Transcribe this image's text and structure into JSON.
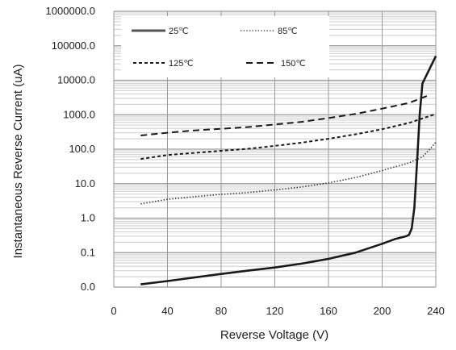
{
  "chart_data": {
    "type": "line",
    "title": "",
    "xlabel": "Reverse Voltage (V)",
    "ylabel": "Instantaneous Reverse Current (uA)",
    "xlim": [
      0,
      240
    ],
    "ylim": [
      0.01,
      1000000
    ],
    "y_scale": "log",
    "grid": true,
    "legend_position": "top-left",
    "x_ticks": [
      0,
      40,
      80,
      120,
      160,
      200,
      240
    ],
    "x_tick_labels": [
      "0",
      "40",
      "80",
      "120",
      "160",
      "200",
      "240"
    ],
    "y_ticks": [
      0.01,
      0.1,
      1,
      10,
      100,
      1000,
      10000,
      100000,
      1000000
    ],
    "y_tick_labels": [
      "0.0",
      "0.1",
      "1.0",
      "10.0",
      "100.0",
      "1000.0",
      "10000.0",
      "100000.0",
      "1000000.0"
    ],
    "series": [
      {
        "name": "25℃",
        "style": "solid-thick",
        "color": "#1a1a1a",
        "x": [
          20,
          40,
          60,
          80,
          100,
          120,
          140,
          160,
          180,
          200,
          210,
          218,
          220,
          222,
          224,
          226,
          228,
          230,
          235,
          240
        ],
        "y": [
          0.012,
          0.015,
          0.019,
          0.024,
          0.03,
          0.037,
          0.048,
          0.066,
          0.1,
          0.18,
          0.25,
          0.3,
          0.33,
          0.5,
          2,
          40,
          1000,
          8000,
          20000,
          50000
        ]
      },
      {
        "name": "85℃",
        "style": "dotted",
        "color": "#333333",
        "x": [
          20,
          40,
          60,
          80,
          100,
          120,
          140,
          160,
          180,
          200,
          210,
          220,
          230,
          235,
          240
        ],
        "y": [
          2.6,
          3.5,
          4.2,
          4.9,
          5.5,
          6.6,
          8.0,
          10.5,
          15,
          24,
          31,
          40,
          60,
          95,
          160
        ]
      },
      {
        "name": "125℃",
        "style": "short-dash",
        "color": "#1a1a1a",
        "x": [
          20,
          40,
          60,
          80,
          100,
          120,
          140,
          160,
          180,
          200,
          220,
          240
        ],
        "y": [
          52,
          68,
          78,
          90,
          103,
          125,
          155,
          200,
          270,
          380,
          580,
          1050
        ]
      },
      {
        "name": "150℃",
        "style": "long-dash",
        "color": "#1a1a1a",
        "x": [
          20,
          40,
          60,
          80,
          100,
          120,
          140,
          160,
          180,
          200,
          220,
          235
        ],
        "y": [
          250,
          300,
          350,
          390,
          440,
          520,
          620,
          800,
          1050,
          1500,
          2200,
          3700
        ]
      }
    ]
  }
}
